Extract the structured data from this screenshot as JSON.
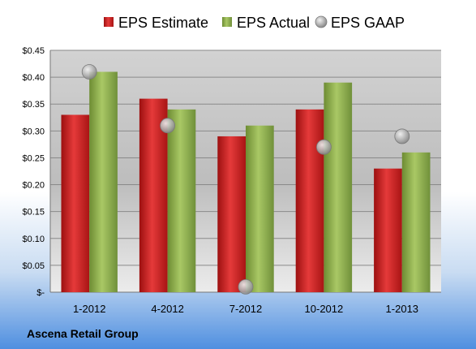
{
  "chart_data": {
    "type": "bar",
    "categories": [
      "1-2012",
      "4-2012",
      "7-2012",
      "10-2012",
      "1-2013"
    ],
    "series": [
      {
        "name": "EPS Estimate",
        "kind": "bar",
        "color": "#cc1f1f",
        "values": [
          0.33,
          0.36,
          0.29,
          0.34,
          0.23
        ]
      },
      {
        "name": "EPS Actual",
        "kind": "bar",
        "color": "#8db04a",
        "values": [
          0.41,
          0.34,
          0.31,
          0.39,
          0.26
        ]
      },
      {
        "name": "EPS GAAP",
        "kind": "scatter",
        "color": "#b0b0b0",
        "values": [
          0.41,
          0.31,
          0.01,
          0.27,
          0.29
        ]
      }
    ],
    "yticks": [
      0,
      0.05,
      0.1,
      0.15,
      0.2,
      0.25,
      0.3,
      0.35,
      0.4,
      0.45
    ],
    "ytick_labels": [
      "$-",
      "$0.05",
      "$0.10",
      "$0.15",
      "$0.20",
      "$0.25",
      "$0.30",
      "$0.35",
      "$0.40",
      "$0.45"
    ],
    "ylim": [
      0,
      0.45
    ],
    "grid": true,
    "legend_position": "top",
    "footer": "Ascena Retail Group"
  }
}
